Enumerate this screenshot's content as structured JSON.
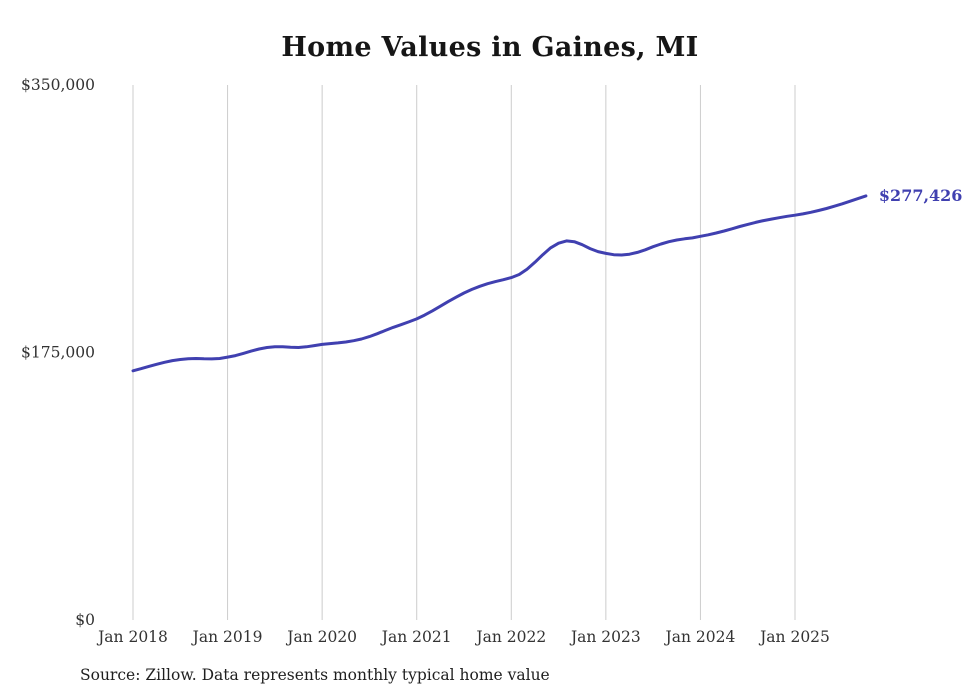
{
  "source_note": "Source: Zillow. Data represents monthly typical home value",
  "chart_data": {
    "type": "line",
    "title": "Home Values in Gaines, MI",
    "xlabel": "",
    "ylabel": "",
    "ylim": [
      0,
      350000
    ],
    "grid": "vertical-only",
    "legend": "none",
    "end_label": "$277,426",
    "end_value": 277426,
    "y_ticks": [
      0,
      175000,
      350000
    ],
    "y_tick_labels": [
      "$0",
      "$175,000",
      "$350,000"
    ],
    "x_tick_labels": [
      "Jan 2018",
      "Jan 2019",
      "Jan 2020",
      "Jan 2021",
      "Jan 2022",
      "Jan 2023",
      "Jan 2024",
      "Jan 2025"
    ],
    "colors": {
      "line": "#4040b0",
      "grid": "#cccccc",
      "axis_text": "#333333",
      "title_text": "#161616"
    },
    "months": [
      "2018-01",
      "2018-02",
      "2018-03",
      "2018-04",
      "2018-05",
      "2018-06",
      "2018-07",
      "2018-08",
      "2018-09",
      "2018-10",
      "2018-11",
      "2018-12",
      "2019-01",
      "2019-02",
      "2019-03",
      "2019-04",
      "2019-05",
      "2019-06",
      "2019-07",
      "2019-08",
      "2019-09",
      "2019-10",
      "2019-11",
      "2019-12",
      "2020-01",
      "2020-02",
      "2020-03",
      "2020-04",
      "2020-05",
      "2020-06",
      "2020-07",
      "2020-08",
      "2020-09",
      "2020-10",
      "2020-11",
      "2020-12",
      "2021-01",
      "2021-02",
      "2021-03",
      "2021-04",
      "2021-05",
      "2021-06",
      "2021-07",
      "2021-08",
      "2021-09",
      "2021-10",
      "2021-11",
      "2021-12",
      "2022-01",
      "2022-02",
      "2022-03",
      "2022-04",
      "2022-05",
      "2022-06",
      "2022-07",
      "2022-08",
      "2022-09",
      "2022-10",
      "2022-11",
      "2022-12",
      "2023-01",
      "2023-02",
      "2023-03",
      "2023-04",
      "2023-05",
      "2023-06",
      "2023-07",
      "2023-08",
      "2023-09",
      "2023-10",
      "2023-11",
      "2023-12",
      "2024-01",
      "2024-02",
      "2024-03",
      "2024-04",
      "2024-05",
      "2024-06",
      "2024-07",
      "2024-08",
      "2024-09",
      "2024-10",
      "2024-11",
      "2024-12",
      "2025-01",
      "2025-02",
      "2025-03",
      "2025-04",
      "2025-05",
      "2025-06",
      "2025-07",
      "2025-08",
      "2025-09",
      "2025-10"
    ],
    "values": [
      163000,
      164400,
      165900,
      167300,
      168600,
      169700,
      170400,
      170900,
      171100,
      170900,
      170800,
      171100,
      172000,
      173000,
      174400,
      175900,
      177300,
      178300,
      178800,
      178700,
      178400,
      178300,
      178700,
      179500,
      180300,
      180800,
      181300,
      181900,
      182700,
      183800,
      185400,
      187300,
      189400,
      191400,
      193200,
      195000,
      197000,
      199500,
      202300,
      205300,
      208300,
      211200,
      213900,
      216300,
      218300,
      220000,
      221400,
      222600,
      224000,
      226000,
      229500,
      234000,
      239000,
      243500,
      246500,
      248000,
      247500,
      245500,
      243000,
      241000,
      239800,
      239000,
      238800,
      239300,
      240500,
      242200,
      244200,
      246000,
      247500,
      248600,
      249400,
      250000,
      251000,
      252000,
      253200,
      254500,
      255900,
      257400,
      258800,
      260100,
      261300,
      262300,
      263200,
      264100,
      264800,
      265700,
      266700,
      267900,
      269200,
      270700,
      272300,
      274000,
      275700,
      277426
    ]
  }
}
